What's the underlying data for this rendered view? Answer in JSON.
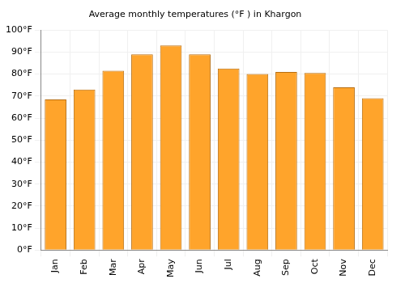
{
  "chart_data": {
    "type": "bar",
    "title": "Average monthly temperatures (°F ) in Khargon",
    "categories": [
      "Jan",
      "Feb",
      "Mar",
      "Apr",
      "May",
      "Jun",
      "Jul",
      "Aug",
      "Sep",
      "Oct",
      "Nov",
      "Dec"
    ],
    "values": [
      68.5,
      73,
      81.5,
      89,
      93,
      89,
      82.5,
      80,
      81,
      80.5,
      74,
      69
    ],
    "color": "#ffa42b",
    "ylim": [
      0,
      100
    ],
    "yticks": [
      {
        "value": 0,
        "label": "0°F"
      },
      {
        "value": 10,
        "label": "10°F"
      },
      {
        "value": 20,
        "label": "20°F"
      },
      {
        "value": 30,
        "label": "30°F"
      },
      {
        "value": 40,
        "label": "40°F"
      },
      {
        "value": 50,
        "label": "50°F"
      },
      {
        "value": 60,
        "label": "60°F"
      },
      {
        "value": 70,
        "label": "70°F"
      },
      {
        "value": 80,
        "label": "80°F"
      },
      {
        "value": 90,
        "label": "90°F"
      },
      {
        "value": 100,
        "label": "100°F"
      }
    ],
    "grid": true
  }
}
